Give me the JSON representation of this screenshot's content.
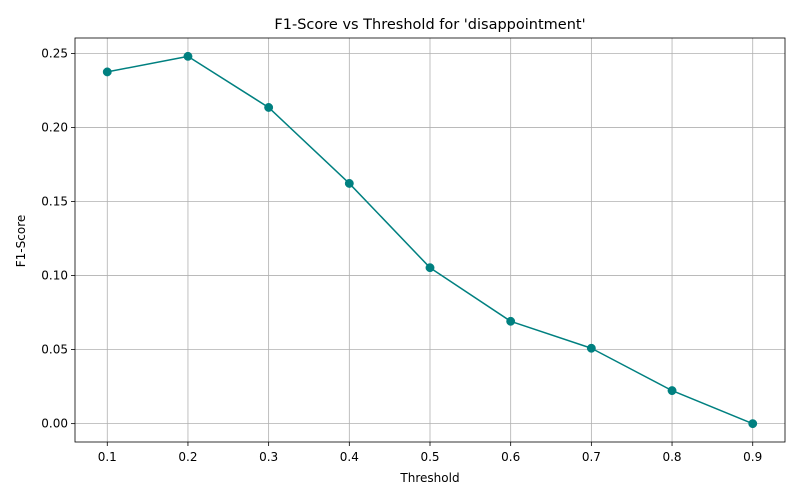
{
  "chart_data": {
    "type": "line",
    "title": "F1-Score vs Threshold for 'disappointment'",
    "xlabel": "Threshold",
    "ylabel": "F1-Score",
    "x": [
      0.1,
      0.2,
      0.3,
      0.4,
      0.5,
      0.6,
      0.7,
      0.8,
      0.9
    ],
    "series": [
      {
        "values": [
          0.2375,
          0.248,
          0.2135,
          0.1622,
          0.1053,
          0.0691,
          0.0509,
          0.0223,
          0.0
        ],
        "color": "#008080",
        "marker": "circle"
      }
    ],
    "xlim": [
      0.06,
      0.94
    ],
    "ylim": [
      -0.0124,
      0.2604
    ],
    "x_ticks": [
      0.1,
      0.2,
      0.3,
      0.4,
      0.5,
      0.6,
      0.7,
      0.8,
      0.9
    ],
    "x_tick_labels": [
      "0.1",
      "0.2",
      "0.3",
      "0.4",
      "0.5",
      "0.6",
      "0.7",
      "0.8",
      "0.9"
    ],
    "y_ticks": [
      0.0,
      0.05,
      0.1,
      0.15,
      0.2,
      0.25
    ],
    "y_tick_labels": [
      "0.00",
      "0.05",
      "0.10",
      "0.15",
      "0.20",
      "0.25"
    ],
    "grid": true,
    "legend": "none"
  }
}
